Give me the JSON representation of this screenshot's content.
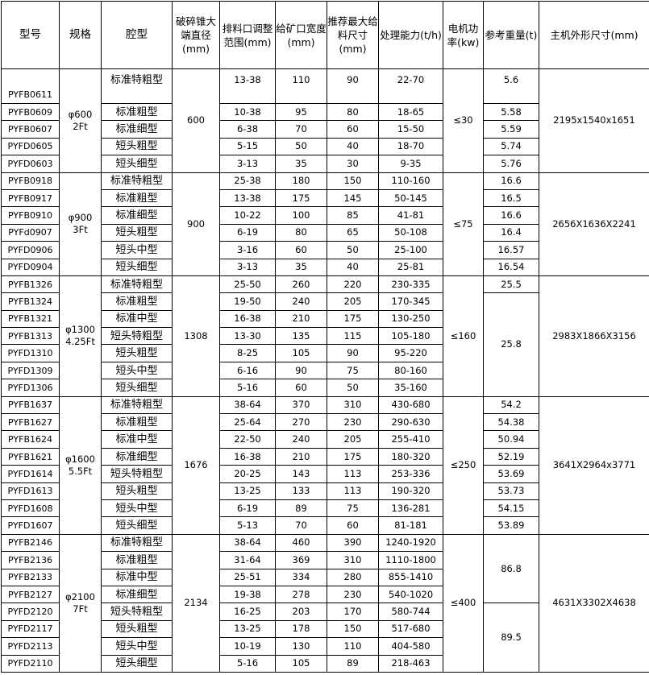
{
  "headers": [
    "型号",
    "规格",
    "腔型",
    "破碎锥大端直径(mm)",
    "排料口调整范围(mm)",
    "给矿口宽度(mm)",
    "推荐最大给料尺寸(mm)",
    "处理能力(t/h)",
    "电机功率(kw)",
    "参考重量(t)",
    "主机外形尺寸(mm)"
  ],
  "groups": [
    {
      "spec": [
        "φ600",
        "2Ft"
      ],
      "cone": "600",
      "power": "≤30",
      "dims": "2195x1540x1651",
      "weights": [
        {
          "v": "5.6",
          "span": 1
        },
        {
          "v": "5.58",
          "span": 1
        },
        {
          "v": "5.59",
          "span": 1
        },
        {
          "v": "5.74",
          "span": 1
        },
        {
          "v": "5.76",
          "span": 1
        }
      ],
      "rows": [
        [
          "PYFB0611",
          "标准特粗型",
          "13-38",
          "110",
          "90",
          "22-70"
        ],
        [
          "PYFB0609",
          "标准粗型",
          "10-38",
          "95",
          "80",
          "18-65"
        ],
        [
          "PYFB0607",
          "标准细型",
          "6-38",
          "70",
          "60",
          "15-50"
        ],
        [
          "PYFD0605",
          "短头粗型",
          "5-15",
          "50",
          "40",
          "18-70"
        ],
        [
          "PYFD0603",
          "短头细型",
          "3-13",
          "35",
          "30",
          "9-35"
        ]
      ]
    },
    {
      "spec": [
        "φ900",
        "3Ft"
      ],
      "cone": "900",
      "power": "≤75",
      "dims": "2656X1636X2241",
      "weights": [
        {
          "v": "16.6",
          "span": 1
        },
        {
          "v": "16.5",
          "span": 1
        },
        {
          "v": "16.6",
          "span": 1
        },
        {
          "v": "16.4",
          "span": 1
        },
        {
          "v": "16.57",
          "span": 1
        },
        {
          "v": "16.54",
          "span": 1
        }
      ],
      "rows": [
        [
          "PYFB0918",
          "标准特粗型",
          "25-38",
          "180",
          "150",
          "110-160"
        ],
        [
          "PYFB0917",
          "标准粗型",
          "13-38",
          "175",
          "145",
          "50-145"
        ],
        [
          "PYFB0910",
          "标准细型",
          "10-22",
          "100",
          "85",
          "41-81"
        ],
        [
          "PYFd0907",
          "短头粗型",
          "6-19",
          "80",
          "65",
          "50-108"
        ],
        [
          "PYFD0906",
          "短头中型",
          "3-16",
          "60",
          "50",
          "25-100"
        ],
        [
          "PYFD0904",
          "短头细型",
          "3-13",
          "35",
          "40",
          "25-81"
        ]
      ]
    },
    {
      "spec": [
        "φ1300",
        "4.25Ft"
      ],
      "cone": "1308",
      "power": "≤160",
      "dims": "2983X1866X3156",
      "weights": [
        {
          "v": "25.5",
          "span": 1
        },
        {
          "v": "25.8",
          "span": 6
        }
      ],
      "rows": [
        [
          "PYFB1326",
          "标准特粗型",
          "25-50",
          "260",
          "220",
          "230-335"
        ],
        [
          "PYFB1324",
          "标准粗型",
          "19-50",
          "240",
          "205",
          "170-345"
        ],
        [
          "PYFB1321",
          "标准中型",
          "16-38",
          "210",
          "175",
          "130-250"
        ],
        [
          "PYFB1313",
          "短头特粗型",
          "13-30",
          "135",
          "115",
          "105-180"
        ],
        [
          "PYFD1310",
          "短头粗型",
          "8-25",
          "105",
          "90",
          "95-220"
        ],
        [
          "PYFD1309",
          "短头中型",
          "6-16",
          "90",
          "75",
          "80-160"
        ],
        [
          "PYFD1306",
          "短头细型",
          "5-16",
          "60",
          "50",
          "35-160"
        ]
      ]
    },
    {
      "spec": [
        "φ1600",
        "5.5Ft"
      ],
      "cone": "1676",
      "power": "≤250",
      "dims": "3641X2964x3771",
      "weights": [
        {
          "v": "54.2",
          "span": 1
        },
        {
          "v": "54.38",
          "span": 1
        },
        {
          "v": "50.94",
          "span": 1
        },
        {
          "v": "52.19",
          "span": 1
        },
        {
          "v": "53.69",
          "span": 1
        },
        {
          "v": "53.73",
          "span": 1
        },
        {
          "v": "54.15",
          "span": 1
        },
        {
          "v": "53.89",
          "span": 1
        }
      ],
      "rows": [
        [
          "PYFB1637",
          "标准特粗型",
          "38-64",
          "370",
          "310",
          "430-680"
        ],
        [
          "PYFB1627",
          "标准粗型",
          "25-64",
          "270",
          "230",
          "290-630"
        ],
        [
          "PYFB1624",
          "标准中型",
          "22-50",
          "240",
          "205",
          "255-410"
        ],
        [
          "PYFB1621",
          "标准细型",
          "16-38",
          "210",
          "175",
          "180-320"
        ],
        [
          "PYFD1614",
          "短头特粗型",
          "20-25",
          "143",
          "113",
          "253-336"
        ],
        [
          "PYFD1613",
          "短头粗型",
          "13-25",
          "133",
          "113",
          "190-320"
        ],
        [
          "PYFD1608",
          "短头中型",
          "6-19",
          "89",
          "75",
          "136-281"
        ],
        [
          "PYFD1607",
          "短头细型",
          "5-13",
          "70",
          "60",
          "81-181"
        ]
      ]
    },
    {
      "spec": [
        "φ2100",
        "7Ft"
      ],
      "cone": "2134",
      "power": "≤400",
      "dims": "4631X3302X4638",
      "weights": [
        {
          "v": "86.8",
          "span": 4
        },
        {
          "v": "89.5",
          "span": 4
        }
      ],
      "rows": [
        [
          "PYFB2146",
          "标准特粗型",
          "38-64",
          "460",
          "390",
          "1240-1920"
        ],
        [
          "PYFB2136",
          "标准粗型",
          "31-64",
          "369",
          "310",
          "1110-1800"
        ],
        [
          "PYFB2133",
          "标准中型",
          "25-51",
          "334",
          "280",
          "855-1410"
        ],
        [
          "PYFB2127",
          "标准细型",
          "19-38",
          "278",
          "230",
          "540-1020"
        ],
        [
          "PYFD2120",
          "短头特粗型",
          "16-25",
          "203",
          "170",
          "580-744"
        ],
        [
          "PYFD2117",
          "短头粗型",
          "13-25",
          "178",
          "150",
          "517-680"
        ],
        [
          "PYFD2113",
          "短头中型",
          "10-19",
          "130",
          "110",
          "404-580"
        ],
        [
          "PYFD2110",
          "短头细型",
          "5-16",
          "105",
          "89",
          "218-463"
        ]
      ]
    }
  ]
}
